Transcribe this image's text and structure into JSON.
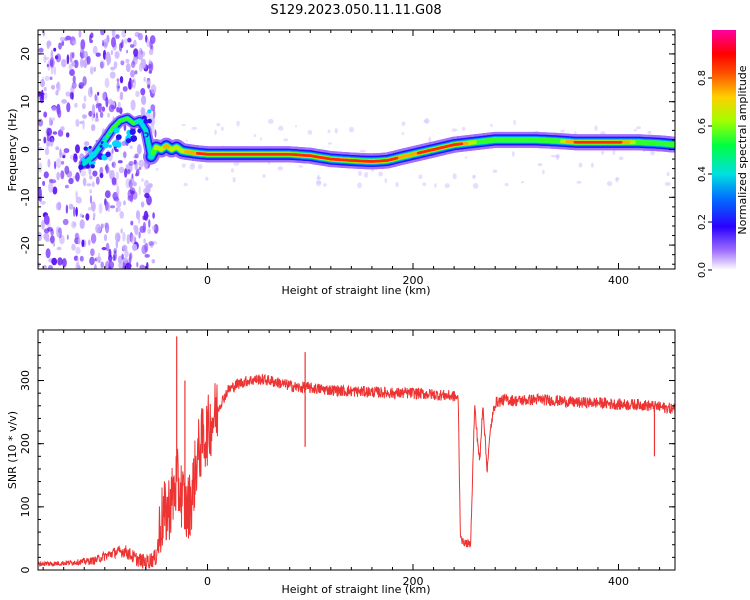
{
  "title": "S129.2023.050.11.11.G08",
  "chart_data": [
    {
      "type": "heatmap",
      "name": "spectrogram",
      "xlabel": "Height of straight line (km)",
      "ylabel": "Frequency (Hz)",
      "xlim": [
        -165,
        455
      ],
      "ylim": [
        -25,
        25
      ],
      "xticks": [
        0,
        200,
        400
      ],
      "yticks": [
        -20,
        -10,
        0,
        10,
        20
      ],
      "grid": false,
      "ridge": {
        "x": [
          -120,
          -110,
          -100,
          -92,
          -85,
          -78,
          -72,
          -66,
          -60,
          -55,
          -50,
          -45,
          -40,
          -35,
          -30,
          -25,
          -20,
          -10,
          0,
          20,
          40,
          60,
          80,
          100,
          120,
          140,
          160,
          175,
          190,
          200,
          210,
          220,
          240,
          260,
          280,
          300,
          320,
          340,
          360,
          380,
          400,
          420,
          440,
          455
        ],
        "y": [
          -3,
          -1,
          2,
          4.5,
          6,
          6.5,
          5.5,
          6,
          4,
          -1.5,
          0.5,
          0,
          0.8,
          0,
          0.5,
          -0.3,
          -0.5,
          -0.8,
          -1,
          -1,
          -1,
          -1,
          -1,
          -1.3,
          -2,
          -2.3,
          -2.5,
          -2.3,
          -1.5,
          -1,
          -0.5,
          0,
          1,
          1.5,
          2,
          2,
          2,
          1.8,
          1.5,
          1.5,
          1.5,
          1.5,
          1.3,
          1
        ],
        "amp": [
          0.35,
          0.35,
          0.4,
          0.45,
          0.45,
          0.45,
          0.4,
          0.35,
          0.35,
          0.3,
          0.6,
          0.6,
          0.7,
          0.6,
          0.6,
          0.55,
          0.7,
          0.75,
          0.9,
          0.95,
          0.95,
          0.95,
          0.95,
          0.9,
          0.9,
          0.9,
          0.9,
          0.85,
          0.7,
          0.7,
          0.8,
          0.85,
          0.9,
          0.55,
          0.5,
          0.55,
          0.5,
          0.5,
          0.8,
          0.85,
          0.8,
          0.5,
          0.5,
          0.45
        ]
      },
      "colorbar": {
        "label": "Normalized spectral amplitude",
        "range": [
          0,
          1
        ],
        "ticks": [
          "0.0",
          "0.2",
          "0.4",
          "0.6",
          "0.8"
        ]
      }
    },
    {
      "type": "line",
      "name": "snr",
      "xlabel": "Height of straight line (km)",
      "ylabel": "SNR (10 * v/v)",
      "xlim": [
        -165,
        455
      ],
      "ylim": [
        0,
        380
      ],
      "xticks": [
        0,
        200,
        400
      ],
      "yticks": [
        0,
        100,
        200,
        300
      ],
      "grid": false,
      "color": "#ee3333",
      "x": [
        -165,
        -150,
        -130,
        -110,
        -100,
        -90,
        -80,
        -70,
        -60,
        -50,
        -47,
        -45,
        -40,
        -35,
        -30,
        -25,
        -20,
        -15,
        -10,
        -5,
        0,
        5,
        10,
        20,
        30,
        40,
        50,
        60,
        70,
        80,
        90,
        95,
        100,
        120,
        140,
        160,
        180,
        200,
        220,
        240,
        244,
        246,
        248,
        252,
        256,
        260,
        262,
        265,
        268,
        272,
        276,
        280,
        290,
        300,
        320,
        340,
        360,
        380,
        400,
        420,
        440,
        455
      ],
      "y": [
        10,
        10,
        12,
        15,
        22,
        28,
        30,
        18,
        12,
        20,
        60,
        80,
        90,
        110,
        140,
        120,
        90,
        120,
        180,
        205,
        220,
        240,
        255,
        285,
        295,
        300,
        302,
        300,
        296,
        292,
        288,
        290,
        288,
        285,
        283,
        282,
        280,
        280,
        278,
        275,
        272,
        60,
        45,
        42,
        40,
        260,
        220,
        170,
        265,
        160,
        230,
        265,
        270,
        268,
        270,
        268,
        265,
        265,
        262,
        262,
        258,
        255
      ],
      "spikes": [
        {
          "x": -30,
          "y": 370
        },
        {
          "x": -22,
          "y": 300
        },
        {
          "x": 95,
          "y": 345
        },
        {
          "x": 95,
          "y": 195
        },
        {
          "x": 435,
          "y": 180
        }
      ]
    }
  ]
}
